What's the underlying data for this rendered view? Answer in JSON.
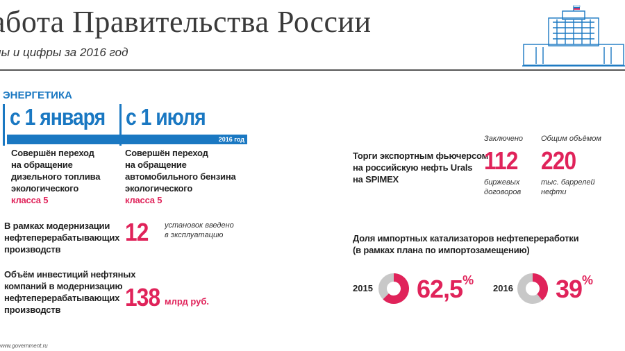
{
  "header": {
    "title": "аботa Правительства России",
    "subtitle": "лы и цифры за 2016 год"
  },
  "section": {
    "title": "ЭНЕРГЕТИКА",
    "date1": "с 1 января",
    "date2": "с 1 июля",
    "year_tag": "2016 год",
    "col1": {
      "lines": [
        "Совершён переход",
        "на обращение",
        "дизельного топлива",
        "экологического"
      ],
      "class": "класса 5"
    },
    "col2": {
      "lines": [
        "Совершён переход",
        "на обращение",
        "автомобильного бензина",
        "экологического"
      ],
      "class": "класса 5"
    }
  },
  "modernization": {
    "lines": [
      "В рамках модернизации",
      "нефтеперерабатывающих",
      "производств"
    ],
    "value": "12",
    "note_lines": [
      "установок введено",
      "в эксплуатацию"
    ]
  },
  "investments": {
    "lines": [
      "Объём инвестиций нефтяных",
      "компаний в модернизацию",
      "нефтеперерабатывающих",
      "производств"
    ],
    "value": "138",
    "unit": "млрд руб."
  },
  "futures": {
    "lines": [
      "Торги экспортным фьючерсом",
      "на российскую нефть Urals",
      "на SPIMEX"
    ],
    "contracts": {
      "caption": "Заключено",
      "value": "112",
      "note_lines": [
        "биржевых",
        "договоров"
      ]
    },
    "volume": {
      "caption": "Общим объёмом",
      "value": "220",
      "note_lines": [
        "тыс. баррелей",
        "нефти"
      ]
    }
  },
  "catalysts": {
    "lines": [
      "Доля импортных катализаторов нефтепереработки",
      "(в рамках плана по импортозамещению)"
    ],
    "items": [
      {
        "year": "2015",
        "value": "62,5",
        "fraction": 0.625
      },
      {
        "year": "2016",
        "value": "39",
        "fraction": 0.39
      }
    ],
    "percent_sign": "%"
  },
  "source": "www.government.ru",
  "colors": {
    "blue": "#1a78c2",
    "pink": "#e0235a",
    "gray": "#c8c8c8"
  }
}
